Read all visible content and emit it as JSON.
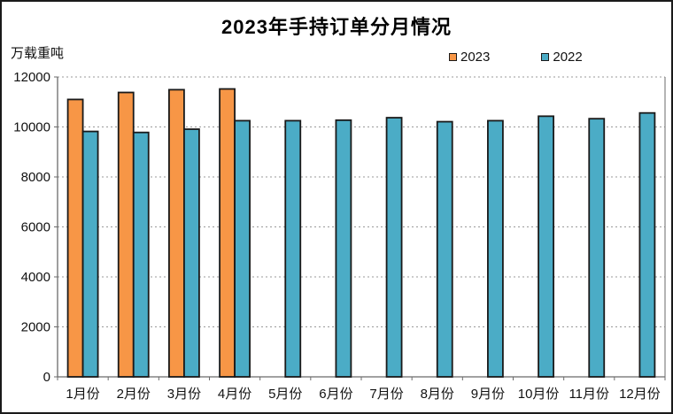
{
  "chart_data": {
    "type": "bar",
    "title": "2023年手持订单分月情况",
    "unit_label": "万载重吨",
    "xlabel": "",
    "ylabel": "万载重吨",
    "categories": [
      "1月份",
      "2月份",
      "3月份",
      "4月份",
      "5月份",
      "6月份",
      "7月份",
      "8月份",
      "9月份",
      "10月份",
      "11月份",
      "12月份"
    ],
    "series": [
      {
        "name": "2023",
        "color": "#F79646",
        "values": [
          11100,
          11380,
          11490,
          11520,
          null,
          null,
          null,
          null,
          null,
          null,
          null,
          null
        ]
      },
      {
        "name": "2022",
        "color": "#4BACC6",
        "values": [
          9820,
          9780,
          9910,
          10250,
          10250,
          10270,
          10370,
          10210,
          10250,
          10430,
          10330,
          10560
        ]
      }
    ],
    "ylim": [
      0,
      12000
    ],
    "yticks": [
      0,
      2000,
      4000,
      6000,
      8000,
      10000,
      12000
    ],
    "grid": "horizontal-dashed",
    "legend_position": "top-right",
    "colors": {
      "bar_border": "#1a1a1a",
      "gridline": "#9a9a9a",
      "axis": "#6b6b6b",
      "text": "#111111"
    }
  }
}
